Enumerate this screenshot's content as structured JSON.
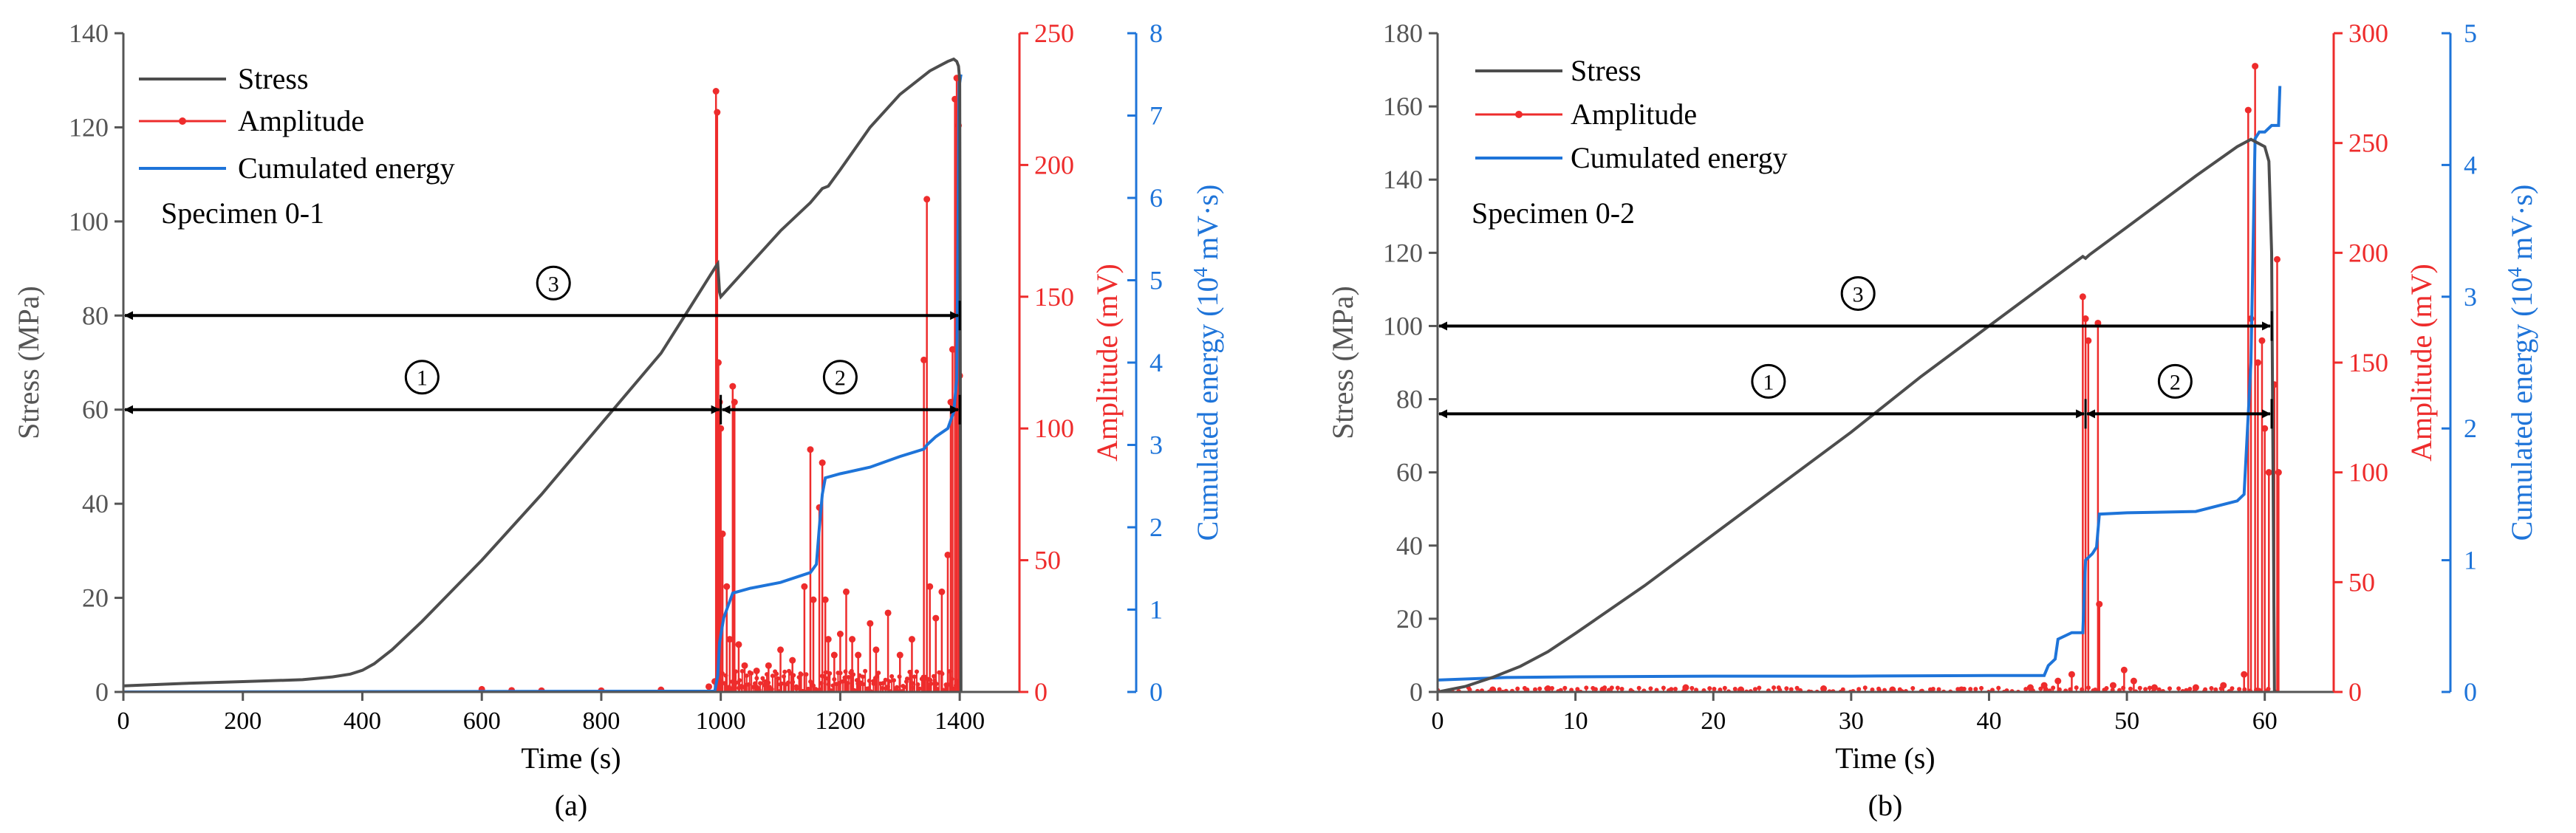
{
  "colors": {
    "stress": "#4d4d4d",
    "amplitude": "#ee2c2c",
    "energy": "#1e74d9",
    "axis_left": "#555555",
    "annotation": "#000000"
  },
  "chart_data": [
    {
      "type": "line",
      "panel_label": "(a)",
      "specimen_label": "Specimen 0-1",
      "xlabel": "Time (s)",
      "ylabel_left": "Stress (MPa)",
      "ylabel_amp": "Amplitude (mV)",
      "ylabel_energy_pre": "Cumulated energy (10",
      "ylabel_energy_sup": "4",
      "ylabel_energy_post": " mV·s)",
      "xlim": [
        0,
        1500
      ],
      "x_ticks": [
        0,
        200,
        400,
        600,
        800,
        1000,
        1200,
        1400
      ],
      "stress_lim": [
        0,
        140
      ],
      "stress_ticks": [
        0,
        20,
        40,
        60,
        80,
        100,
        120,
        140
      ],
      "amp_lim": [
        0,
        250
      ],
      "amp_ticks": [
        0,
        50,
        100,
        150,
        200,
        250
      ],
      "energy_lim": [
        0,
        8
      ],
      "energy_ticks": [
        0,
        1,
        2,
        3,
        4,
        5,
        6,
        7,
        8
      ],
      "legend": [
        "Stress",
        "Amplitude",
        "Cumulated energy"
      ],
      "stress": {
        "name": "Stress",
        "x": [
          0,
          100,
          200,
          300,
          350,
          380,
          400,
          420,
          450,
          500,
          600,
          700,
          800,
          900,
          950,
          992,
          995,
          998,
          1000,
          1050,
          1100,
          1150,
          1170,
          1180,
          1200,
          1250,
          1300,
          1350,
          1380,
          1390,
          1395,
          1398,
          1400,
          1402
        ],
        "y": [
          1.3,
          1.8,
          2.2,
          2.6,
          3.2,
          3.8,
          4.6,
          6.0,
          9.0,
          15,
          28,
          42,
          57,
          72,
          82,
          90.5,
          91,
          85,
          84,
          91,
          98,
          104,
          107,
          107.5,
          111,
          120,
          127,
          132,
          134,
          134.5,
          134,
          133,
          130,
          0
        ]
      },
      "energy": {
        "name": "Cumulated energy",
        "x": [
          0,
          990,
          995,
          998,
          1005,
          1020,
          1050,
          1100,
          1150,
          1160,
          1165,
          1170,
          1175,
          1200,
          1250,
          1300,
          1340,
          1345,
          1360,
          1380,
          1385,
          1390,
          1395,
          1397,
          1399,
          1400,
          1402
        ],
        "y": [
          0.0,
          0.01,
          0.2,
          0.6,
          0.9,
          1.2,
          1.26,
          1.33,
          1.45,
          1.55,
          2.0,
          2.4,
          2.6,
          2.65,
          2.73,
          2.86,
          2.95,
          3.0,
          3.1,
          3.2,
          3.3,
          3.4,
          3.8,
          5.5,
          7.4,
          7.4,
          7.5
        ]
      },
      "amplitude": {
        "name": "Amplitude",
        "spikes": [
          [
            600,
            1
          ],
          [
            650,
            0.6
          ],
          [
            700,
            0.5
          ],
          [
            800,
            0.5
          ],
          [
            900,
            0.8
          ],
          [
            980,
            2
          ],
          [
            990,
            4
          ],
          [
            992,
            228
          ],
          [
            994,
            220
          ],
          [
            996,
            125
          ],
          [
            998,
            110
          ],
          [
            1000,
            100
          ],
          [
            1003,
            60
          ],
          [
            1010,
            40
          ],
          [
            1015,
            20
          ],
          [
            1020,
            116
          ],
          [
            1023,
            110
          ],
          [
            1030,
            18
          ],
          [
            1040,
            10
          ],
          [
            1060,
            8
          ],
          [
            1080,
            10
          ],
          [
            1100,
            16
          ],
          [
            1120,
            12
          ],
          [
            1140,
            40
          ],
          [
            1150,
            92
          ],
          [
            1155,
            35
          ],
          [
            1165,
            70
          ],
          [
            1170,
            87
          ],
          [
            1175,
            35
          ],
          [
            1180,
            20
          ],
          [
            1190,
            14
          ],
          [
            1200,
            22
          ],
          [
            1210,
            38
          ],
          [
            1220,
            20
          ],
          [
            1230,
            14
          ],
          [
            1250,
            26
          ],
          [
            1260,
            16
          ],
          [
            1280,
            30
          ],
          [
            1300,
            14
          ],
          [
            1320,
            20
          ],
          [
            1340,
            126
          ],
          [
            1345,
            187
          ],
          [
            1350,
            40
          ],
          [
            1360,
            28
          ],
          [
            1370,
            38
          ],
          [
            1380,
            52
          ],
          [
            1385,
            110
          ],
          [
            1388,
            130
          ],
          [
            1392,
            225
          ],
          [
            1395,
            233
          ],
          [
            1398,
            215
          ],
          [
            1400,
            120
          ]
        ],
        "noise_from": 995,
        "noise_to": 1400,
        "noise_max": 8
      },
      "annotations": [
        {
          "label": "①",
          "x_start": 0,
          "x_end": 1000,
          "y": 60,
          "label_x": 500
        },
        {
          "label": "②",
          "x_start": 1000,
          "x_end": 1400,
          "y": 60,
          "label_x": 1200
        },
        {
          "label": "③",
          "x_start": 0,
          "x_end": 1400,
          "y": 80,
          "label_x": 720
        }
      ]
    },
    {
      "type": "line",
      "panel_label": "(b)",
      "specimen_label": "Specimen 0-2",
      "xlabel": "Time (s)",
      "ylabel_left": "Stress (MPa)",
      "ylabel_amp": "Amplitude (mV)",
      "ylabel_energy_pre": "Cumulated energy (10",
      "ylabel_energy_sup": "4",
      "ylabel_energy_post": " mV·s)",
      "xlim": [
        0,
        65
      ],
      "x_ticks": [
        0,
        10,
        20,
        30,
        40,
        50,
        60
      ],
      "stress_lim": [
        0,
        180
      ],
      "stress_ticks": [
        0,
        20,
        40,
        60,
        80,
        100,
        120,
        140,
        160,
        180
      ],
      "amp_lim": [
        0,
        300
      ],
      "amp_ticks": [
        0,
        50,
        100,
        150,
        200,
        250,
        300
      ],
      "energy_lim": [
        0,
        5
      ],
      "energy_ticks": [
        0,
        1,
        2,
        3,
        4,
        5
      ],
      "legend": [
        "Stress",
        "Amplitude",
        "Cumulated energy"
      ],
      "stress": {
        "name": "Stress",
        "x": [
          0,
          2,
          4,
          6,
          8,
          10,
          15,
          20,
          25,
          30,
          35,
          40,
          45,
          46.8,
          47,
          47.3,
          50,
          55,
          58,
          59,
          59.5,
          60,
          60.3,
          60.5,
          60.7
        ],
        "y": [
          0,
          1.5,
          4,
          7,
          11,
          16,
          29,
          43,
          57,
          71,
          86,
          100,
          114,
          119,
          118.5,
          119.5,
          127,
          141,
          149,
          151,
          150,
          149,
          145,
          120,
          0
        ]
      },
      "energy": {
        "name": "Cumulated energy",
        "x": [
          0,
          5,
          10,
          20,
          30,
          40,
          44,
          44.3,
          44.8,
          45,
          46,
          46.8,
          47,
          47.5,
          47.8,
          48,
          50,
          55,
          58,
          58.5,
          59,
          59.3,
          59.6,
          60,
          60.5,
          61,
          61.1
        ],
        "y": [
          0.09,
          0.11,
          0.115,
          0.12,
          0.12,
          0.125,
          0.125,
          0.2,
          0.25,
          0.4,
          0.45,
          0.45,
          1.0,
          1.05,
          1.1,
          1.35,
          1.36,
          1.37,
          1.45,
          1.5,
          2.5,
          4.2,
          4.25,
          4.25,
          4.3,
          4.3,
          4.6
        ]
      },
      "amplitude": {
        "name": "Amplitude",
        "spikes": [
          [
            4,
            1
          ],
          [
            8,
            1.5
          ],
          [
            12,
            1
          ],
          [
            18,
            2
          ],
          [
            22,
            1
          ],
          [
            28,
            1.5
          ],
          [
            33,
            1
          ],
          [
            38,
            1
          ],
          [
            43,
            2
          ],
          [
            44,
            3
          ],
          [
            45,
            5
          ],
          [
            46,
            8
          ],
          [
            46.8,
            180
          ],
          [
            47,
            170
          ],
          [
            47.2,
            160
          ],
          [
            47.9,
            168
          ],
          [
            48,
            40
          ],
          [
            49,
            3
          ],
          [
            49.8,
            10
          ],
          [
            50.5,
            5
          ],
          [
            52,
            2
          ],
          [
            55,
            2
          ],
          [
            57,
            3
          ],
          [
            58.5,
            8
          ],
          [
            58.8,
            265
          ],
          [
            59,
            170
          ],
          [
            59.3,
            285
          ],
          [
            59.5,
            150
          ],
          [
            59.8,
            160
          ],
          [
            60,
            120
          ],
          [
            60.3,
            100
          ],
          [
            60.7,
            140
          ],
          [
            60.9,
            197
          ],
          [
            61,
            100
          ]
        ],
        "noise_from": 0,
        "noise_to": 61,
        "noise_max": 2
      },
      "annotations": [
        {
          "label": "①",
          "x_start": 0,
          "x_end": 47,
          "y": 76,
          "label_x": 24
        },
        {
          "label": "②",
          "x_start": 47,
          "x_end": 60.5,
          "y": 76,
          "label_x": 53.5
        },
        {
          "label": "③",
          "x_start": 0,
          "x_end": 60.5,
          "y": 100,
          "label_x": 30.5
        }
      ]
    }
  ]
}
